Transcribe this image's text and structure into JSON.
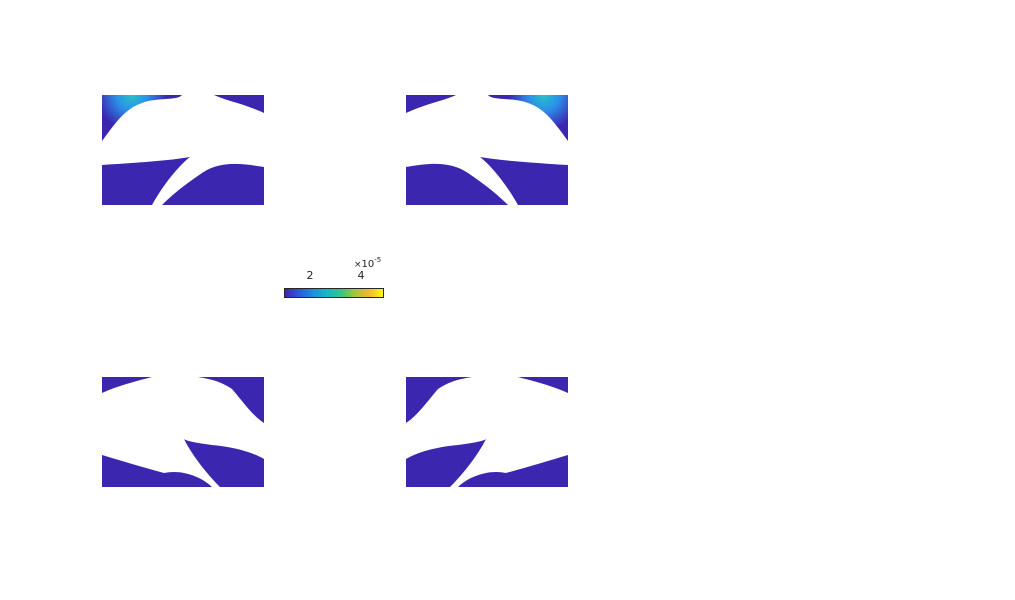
{
  "figure": {
    "panels": [
      {
        "id": "top-left",
        "has_hotspot": true,
        "hotspot_corner": "top-left"
      },
      {
        "id": "top-right",
        "has_hotspot": true,
        "hotspot_corner": "top-right"
      },
      {
        "id": "bottom-left",
        "has_hotspot": false
      },
      {
        "id": "bottom-right",
        "has_hotspot": false
      }
    ],
    "colors": {
      "field_base": "#3b26b0",
      "field_mid": "#2b8fe8",
      "field_hot": "#27c2c7",
      "background": "#ffffff"
    }
  },
  "colorbar": {
    "exponent_base": "10",
    "exponent_power": "-5",
    "tick_labels": [
      "2",
      "4"
    ],
    "colormap": "parula",
    "gradient_stops": [
      "#3e26a8",
      "#2f56e0",
      "#1a8ee0",
      "#13b7c9",
      "#35c48a",
      "#a6c43a",
      "#f2b92c",
      "#f9fb15"
    ]
  }
}
